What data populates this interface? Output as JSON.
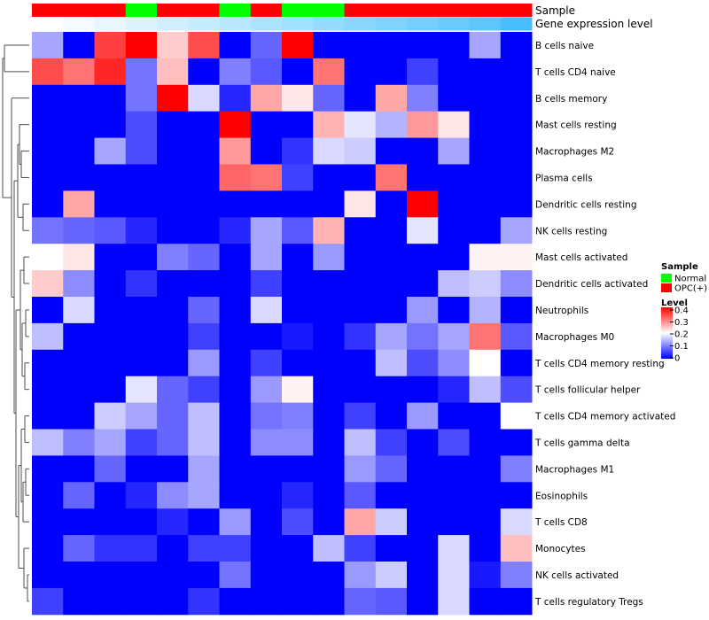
{
  "chart_data": {
    "type": "heatmap",
    "title": "",
    "annotation_rows": {
      "sample_label": "Sample",
      "expression_label": "Gene expression level"
    },
    "columns": [
      {
        "sample": "OPC(+)",
        "expression_level": 0.0
      },
      {
        "sample": "OPC(+)",
        "expression_level": 0.05
      },
      {
        "sample": "OPC(+)",
        "expression_level": 0.1
      },
      {
        "sample": "Normal",
        "expression_level": 0.15
      },
      {
        "sample": "OPC(+)",
        "expression_level": 0.2
      },
      {
        "sample": "OPC(+)",
        "expression_level": 0.25
      },
      {
        "sample": "Normal",
        "expression_level": 0.3
      },
      {
        "sample": "OPC(+)",
        "expression_level": 0.35
      },
      {
        "sample": "Normal",
        "expression_level": 0.4
      },
      {
        "sample": "Normal",
        "expression_level": 0.45
      },
      {
        "sample": "OPC(+)",
        "expression_level": 0.5
      },
      {
        "sample": "OPC(+)",
        "expression_level": 0.55
      },
      {
        "sample": "OPC(+)",
        "expression_level": 0.6
      },
      {
        "sample": "OPC(+)",
        "expression_level": 0.65
      },
      {
        "sample": "OPC(+)",
        "expression_level": 0.7
      },
      {
        "sample": "OPC(+)",
        "expression_level": 0.8
      }
    ],
    "rows": [
      "B cells naive",
      "T cells CD4 naive",
      "B cells memory",
      "Mast cells resting",
      "Macrophages M2",
      "Plasma cells",
      "Dendritic cells resting",
      "NK cells resting",
      "Mast cells activated",
      "Dendritic cells activated",
      "Neutrophils",
      "Macrophages M0",
      "T cells CD4 memory resting",
      "T cells follicular helper",
      "T cells CD4 memory activated",
      "T cells gamma delta",
      "Macrophages M1",
      "Eosinophils",
      "T cells CD8",
      "Monocytes",
      "NK cells activated",
      "T cells regulatory  Tregs"
    ],
    "values": [
      [
        0.13,
        0.0,
        0.35,
        0.4,
        0.24,
        0.34,
        0.0,
        0.08,
        0.4,
        0.0,
        0.0,
        0.0,
        0.0,
        0.0,
        0.13,
        0.0
      ],
      [
        0.34,
        0.31,
        0.37,
        0.09,
        0.25,
        0.0,
        0.1,
        0.07,
        0.0,
        0.31,
        0.0,
        0.0,
        0.05,
        0.0,
        0.0,
        0.0
      ],
      [
        0.0,
        0.0,
        0.0,
        0.09,
        0.4,
        0.17,
        0.03,
        0.27,
        0.22,
        0.08,
        0.0,
        0.27,
        0.1,
        0.0,
        0.0,
        0.0
      ],
      [
        0.0,
        0.0,
        0.0,
        0.06,
        0.0,
        0.0,
        0.4,
        0.0,
        0.0,
        0.26,
        0.18,
        0.14,
        0.28,
        0.22,
        0.0,
        0.0
      ],
      [
        0.0,
        0.0,
        0.13,
        0.06,
        0.0,
        0.0,
        0.28,
        0.0,
        0.04,
        0.17,
        0.16,
        0.0,
        0.0,
        0.13,
        0.0,
        0.0
      ],
      [
        0.0,
        0.0,
        0.0,
        0.0,
        0.0,
        0.0,
        0.32,
        0.31,
        0.05,
        0.0,
        0.0,
        0.31,
        0.0,
        0.0,
        0.0,
        0.0
      ],
      [
        0.0,
        0.27,
        0.0,
        0.0,
        0.0,
        0.0,
        0.0,
        0.0,
        0.0,
        0.0,
        0.22,
        0.0,
        0.4,
        0.0,
        0.0,
        0.0
      ],
      [
        0.09,
        0.08,
        0.07,
        0.03,
        0.0,
        0.0,
        0.03,
        0.13,
        0.07,
        0.26,
        0.0,
        0.0,
        0.18,
        0.0,
        0.0,
        0.13
      ],
      [
        0.2,
        0.22,
        0.0,
        0.0,
        0.1,
        0.08,
        0.0,
        0.13,
        0.0,
        0.12,
        0.0,
        0.0,
        0.0,
        0.0,
        0.21,
        0.21
      ],
      [
        0.24,
        0.11,
        0.0,
        0.04,
        0.0,
        0.0,
        0.0,
        0.05,
        0.0,
        0.0,
        0.0,
        0.0,
        0.0,
        0.15,
        0.16,
        0.11
      ],
      [
        0.0,
        0.17,
        0.0,
        0.0,
        0.0,
        0.08,
        0.0,
        0.17,
        0.0,
        0.0,
        0.0,
        0.0,
        0.12,
        0.0,
        0.14,
        0.0
      ],
      [
        0.15,
        0.0,
        0.0,
        0.0,
        0.0,
        0.05,
        0.0,
        0.0,
        0.02,
        0.0,
        0.04,
        0.13,
        0.09,
        0.13,
        0.31,
        0.07
      ],
      [
        0.0,
        0.0,
        0.0,
        0.0,
        0.0,
        0.12,
        0.0,
        0.05,
        0.0,
        0.0,
        0.0,
        0.15,
        0.06,
        0.11,
        0.2,
        0.0
      ],
      [
        0.0,
        0.0,
        0.0,
        0.18,
        0.08,
        0.05,
        0.0,
        0.12,
        0.21,
        0.0,
        0.0,
        0.0,
        0.0,
        0.03,
        0.15,
        0.06
      ],
      [
        0.0,
        0.0,
        0.16,
        0.13,
        0.08,
        0.15,
        0.0,
        0.09,
        0.1,
        0.0,
        0.05,
        0.0,
        0.12,
        0.0,
        0.0,
        0.2
      ],
      [
        0.15,
        0.1,
        0.13,
        0.05,
        0.08,
        0.15,
        0.0,
        0.11,
        0.11,
        0.0,
        0.15,
        0.05,
        0.0,
        0.06,
        0.0,
        0.0
      ],
      [
        0.0,
        0.0,
        0.08,
        0.0,
        0.0,
        0.13,
        0.0,
        0.0,
        0.0,
        0.0,
        0.12,
        0.08,
        0.0,
        0.0,
        0.0,
        0.1
      ],
      [
        0.0,
        0.08,
        0.0,
        0.03,
        0.11,
        0.13,
        0.0,
        0.0,
        0.03,
        0.0,
        0.07,
        0.0,
        0.0,
        0.0,
        0.0,
        0.0
      ],
      [
        0.0,
        0.0,
        0.0,
        0.0,
        0.03,
        0.0,
        0.12,
        0.0,
        0.06,
        0.0,
        0.27,
        0.16,
        0.0,
        0.0,
        0.0,
        0.17
      ],
      [
        0.0,
        0.08,
        0.04,
        0.04,
        0.0,
        0.05,
        0.05,
        0.0,
        0.0,
        0.15,
        0.05,
        0.0,
        0.0,
        0.17,
        0.0,
        0.25
      ],
      [
        0.0,
        0.0,
        0.0,
        0.0,
        0.0,
        0.0,
        0.09,
        0.0,
        0.0,
        0.0,
        0.12,
        0.16,
        0.0,
        0.17,
        0.02,
        0.1
      ],
      [
        0.05,
        0.0,
        0.0,
        0.0,
        0.0,
        0.04,
        0.0,
        0.0,
        0.0,
        0.0,
        0.08,
        0.07,
        0.0,
        0.17,
        0.0,
        0.0
      ]
    ],
    "legend": {
      "sample_title": "Sample",
      "sample_entries": [
        {
          "label": "Normal",
          "color": "#00ff00"
        },
        {
          "label": "OPC(+)",
          "color": "#ff0000"
        }
      ],
      "level_title": "Level",
      "level_ticks": [
        "0.4",
        "0.3",
        "0.2",
        "0.1",
        "0"
      ],
      "level_range": [
        0,
        0.4
      ],
      "colors": {
        "low": "#0000ff",
        "mid": "#ffffff",
        "high": "#ff0000"
      },
      "placement": "right"
    }
  }
}
